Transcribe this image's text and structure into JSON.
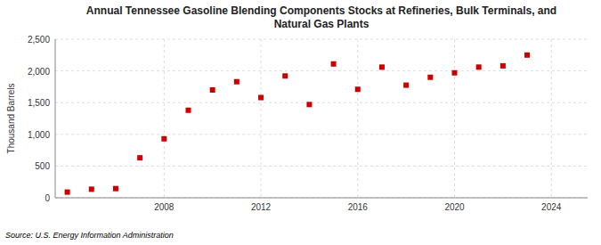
{
  "chart_data": {
    "type": "scatter",
    "title": "Annual Tennessee Gasoline Blending Components Stocks at Refineries, Bulk Terminals, and\nNatural Gas Plants",
    "ylabel": "Thousand Barrels",
    "source": "Source: U.S. Energy Information Administration",
    "x": [
      2004,
      2005,
      2006,
      2007,
      2008,
      2009,
      2010,
      2011,
      2012,
      2013,
      2014,
      2015,
      2016,
      2017,
      2018,
      2019,
      2020,
      2021,
      2022,
      2023,
      2024
    ],
    "values": [
      90,
      135,
      145,
      630,
      930,
      1380,
      1700,
      1830,
      1580,
      1920,
      1470,
      2110,
      1710,
      2060,
      1775,
      1900,
      1970,
      2060,
      2080,
      2250,
      null
    ],
    "color": "#CC0000",
    "marker": "square",
    "grid": true,
    "xlim": [
      2003.5,
      2025.5
    ],
    "xticks": [
      2008,
      2012,
      2016,
      2020,
      2024
    ],
    "ylim": [
      0,
      2500
    ],
    "yticks": [
      0,
      500,
      {
        "value": 1000,
        "label": "1,000"
      },
      {
        "value": 1500,
        "label": "1,500"
      },
      {
        "value": 2000,
        "label": "2,000"
      },
      {
        "value": 2500,
        "label": "2,500"
      }
    ]
  }
}
